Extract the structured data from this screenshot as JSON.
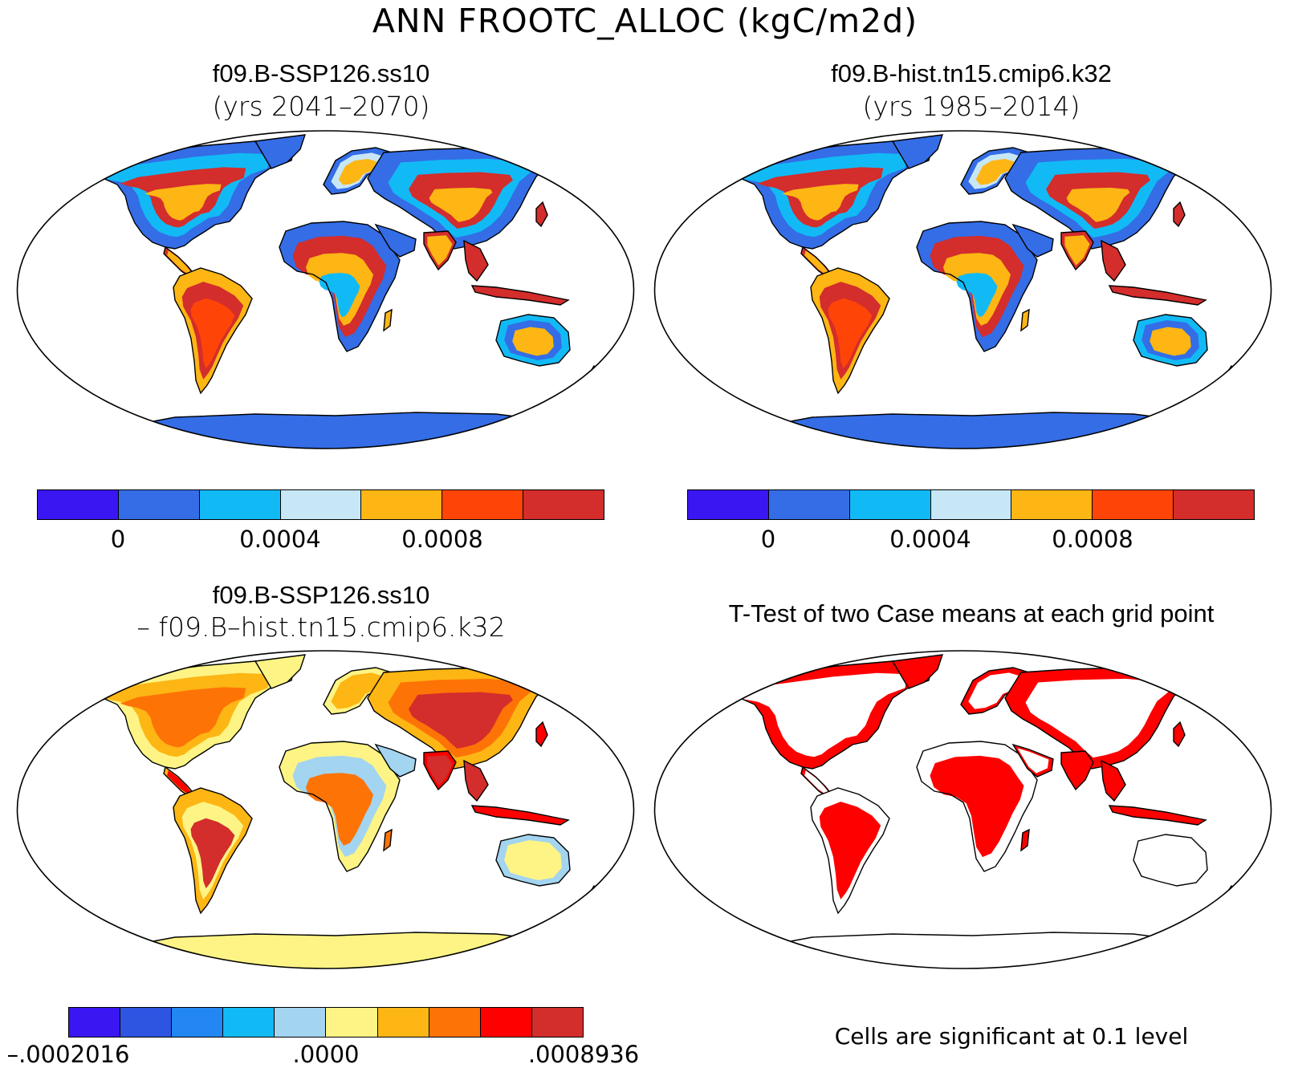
{
  "figure": {
    "title": "ANN FROOTC_ALLOC (kgC/m2d)"
  },
  "panels": [
    {
      "id": "top-left",
      "title_line1": "f09.B-SSP126.ss10",
      "title_line2": "(yrs 2041–2070)",
      "map_style": "field"
    },
    {
      "id": "top-right",
      "title_line1": "f09.B-hist.tn15.cmip6.k32",
      "title_line2": "(yrs 1985–2014)",
      "map_style": "field"
    },
    {
      "id": "bottom-left",
      "title_line1": "f09.B-SSP126.ss10",
      "title_line2": "– f09.B–hist.tn15.cmip6.k32",
      "map_style": "difference"
    },
    {
      "id": "bottom-right",
      "title_line1": "T-Test of two Case means at each grid point",
      "note": "Cells are significant at 0.1 level",
      "map_style": "significance"
    }
  ],
  "colorbars": {
    "field": {
      "colors": [
        "#3a16f2",
        "#346de6",
        "#12baf5",
        "#c7e7f7",
        "#fdb614",
        "#fe4507",
        "#d32d2c"
      ],
      "ticks": [
        {
          "label": "0",
          "boundary": 1
        },
        {
          "label": "0.0004",
          "boundary": 3
        },
        {
          "label": "0.0008",
          "boundary": 5
        }
      ]
    },
    "difference": {
      "colors": [
        "#3a16f2",
        "#2d55e1",
        "#2287f3",
        "#12baf5",
        "#a3d4f0",
        "#fdf485",
        "#fdb614",
        "#fe7306",
        "#fe0000",
        "#d32d2c"
      ],
      "ticks": [
        {
          "label": "–.0002016",
          "boundary": 0
        },
        {
          "label": ".0000",
          "boundary": 5
        },
        {
          "label": ".0008936",
          "boundary": 10
        }
      ]
    }
  },
  "map_colors": {
    "ocean": "#ffffff",
    "coast": "#000000",
    "significant": "#fe0000"
  }
}
